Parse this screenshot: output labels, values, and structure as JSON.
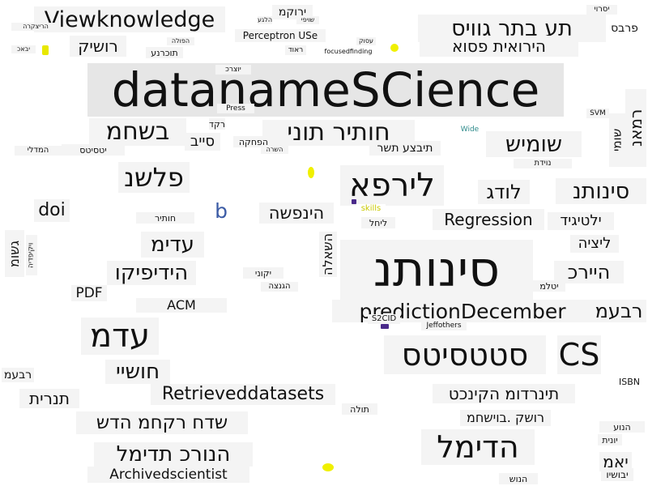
{
  "words": {
    "datanamescience": "datanameSCience",
    "viewknowledge": "Viewknowledge",
    "prediction_december": "predictionDecember",
    "sinunetn": "סינותנ",
    "lirpa": "לירפא",
    "cs": "CS",
    "statistics_he": "סטטסיטס",
    "regression": "Regression",
    "retrieved_datasets": "Retrieveddatasets",
    "archived_scientist": "Archivedscientist",
    "adam": "עדמ",
    "hadimal": "הדימל",
    "flshn": "פלשנ",
    "shomish": "שומיש",
    "doi": "doi",
    "pdf": "PDF",
    "acm": "ACM",
    "perceptron_use": "Perceptron USe",
    "b": "b",
    "wide": "Wide",
    "svm": "SVM",
    "isbn": "ISBN",
    "s2cid": "S2CID",
    "jeffothers": "Jeffothers",
    "focusedfinding": "focusedfinding",
    "skills": "skills",
    "press": "Press",
    "hiroait_psoa": "הירואית פסוא",
    "ta_btr_goois": "תע בתר גוויס",
    "rushik": "רושיק",
    "hidipikio": "הידיפיקו",
    "edim": "עדימ",
    "sinunit": "סינותנ",
    "ldag": "לודג",
    "ilatigid": "ילטיגיד",
    "hiirch": "היירכ",
    "litzia": "ליציה",
    "tinrodum": "תינרדומ הקינכט",
    "shdah": "שדח רקחמ הדש",
    "hurnt_mdimal": "הנורכ תדימל",
    "rushk_bushah": "רושק .בוישחמ",
    "yamn": "יאמ",
    "ramn": "רמאנ",
    "shumi": "שומי",
    "hoshii": "חושיי",
    "hatnpsha": "הינפשה",
    "gshum": "גשומ",
    "tnrit": "תנרית",
    "shahm": "בשחמ",
    "tivtza_tashar": "תיבצע תשר",
    "mochtiz": "חותיר תוני",
    "sarpa": "פרבס",
    "revaa": "רבעמ",
    "misc": [
      "הריצקרה",
      "יבאכ",
      "הפולה",
      "תוכרנע",
      "יוצרכ",
      "ירוקמ",
      "הלגע",
      "שויפי",
      "עסוק",
      "ראוד",
      "סייב",
      "הפחקה",
      "השרה",
      "ליחל",
      "חותיר",
      "רקד",
      "ויקיפדיה",
      "השאלה",
      "יקוני",
      "הגנצה",
      "יטלמ",
      "המדלי",
      "יטסיטס",
      "נוידת",
      "הנוע",
      "תולה",
      "יונית",
      "יסרוי",
      "יבושיו",
      "הנוש"
    ]
  },
  "colors": {
    "text": "#111111",
    "accent_blue": "#3b5ba5",
    "accent_teal": "#2e8b8b",
    "accent_yellow": "#c9c900",
    "tile": "#eeeeee"
  }
}
